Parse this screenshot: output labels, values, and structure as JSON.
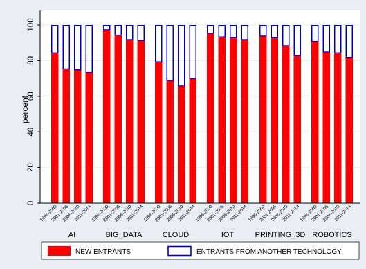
{
  "chart_data": {
    "type": "bar",
    "stacked": true,
    "ylabel": "percent",
    "ylim": [
      0,
      100
    ],
    "yticks": [
      0,
      20,
      40,
      60,
      80,
      100
    ],
    "grid": true,
    "legend_position": "bottom",
    "categories": [
      "AI",
      "BIG_DATA",
      "CLOUD",
      "IOT",
      "PRINTING_3D",
      "ROBOTICS"
    ],
    "periods": [
      "1996-2000",
      "2001-2005",
      "2006-2010",
      "2011-2014"
    ],
    "series": [
      {
        "name": "NEW ENTRANTS",
        "color": "#ff0000",
        "values": [
          [
            84,
            75,
            74.5,
            73
          ],
          [
            97,
            94,
            91.5,
            91
          ],
          [
            79,
            68.5,
            65.5,
            69.5
          ],
          [
            95,
            93,
            92.5,
            91.5
          ],
          [
            93.5,
            92.5,
            88,
            82.5
          ],
          [
            90.5,
            84.5,
            84,
            81.5
          ]
        ]
      },
      {
        "name": "ENTRANTS FROM ANOTHER TECHNOLOGY",
        "color": "#0000cc",
        "values": [
          [
            16,
            25,
            25.5,
            27
          ],
          [
            3,
            6,
            8.5,
            9
          ],
          [
            21,
            31.5,
            34.5,
            30.5
          ],
          [
            5,
            7,
            7.5,
            8.5
          ],
          [
            6.5,
            7.5,
            12,
            17.5
          ],
          [
            9.5,
            15.5,
            16,
            18.5
          ]
        ]
      }
    ]
  }
}
